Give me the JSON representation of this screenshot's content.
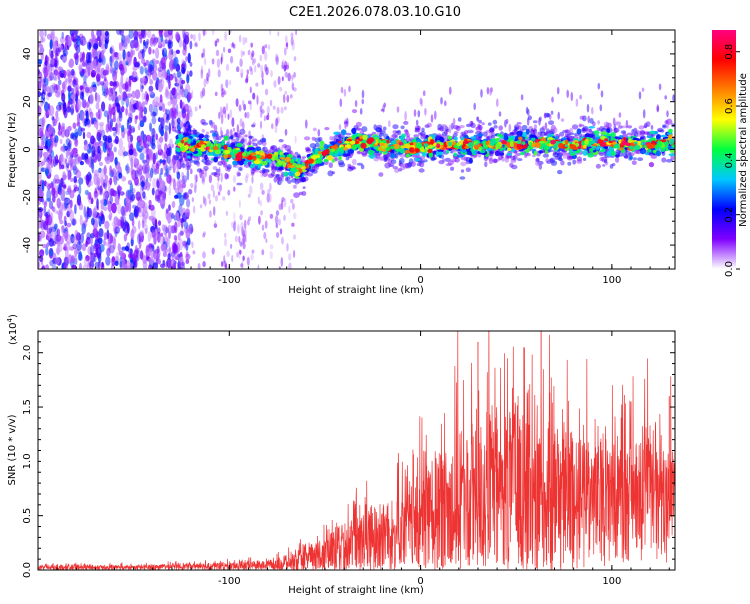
{
  "figure_title": "C2E1.2026.078.03.10.G10",
  "chart_data": [
    {
      "type": "heatmap",
      "title": "C2E1.2026.078.03.10.G10",
      "xlabel": "Height of straight line (km)",
      "ylabel": "Frequency (Hz)",
      "xlim": [
        -200,
        133
      ],
      "ylim": [
        -50,
        50
      ],
      "x_ticks": [
        -100,
        0,
        100
      ],
      "y_ticks": [
        -40,
        -20,
        0,
        20,
        40
      ],
      "x_tick_labels": [
        "-100",
        "0",
        "100"
      ],
      "y_tick_labels": [
        "-40",
        "-20",
        "0",
        "20",
        "40"
      ],
      "colorbar": {
        "label": "Normalized spectral amplitude",
        "range": [
          0.0,
          0.88
        ],
        "ticks": [
          0.0,
          0.2,
          0.4,
          0.6,
          0.8
        ],
        "tick_labels": [
          "0.0",
          "0.2",
          "0.4",
          "0.6",
          "0.8"
        ],
        "colors": [
          "#ffffff",
          "#7f00ff",
          "#0000ff",
          "#00c8ff",
          "#00ff40",
          "#ffff00",
          "#ff8000",
          "#ff0000",
          "#ff0080"
        ]
      },
      "ridge_frequency": {
        "x": [
          -125,
          -110,
          -95,
          -85,
          -75,
          -68,
          -62,
          -55,
          -45,
          -35,
          -25,
          -15,
          0,
          20,
          40,
          60,
          80,
          100,
          115,
          133
        ],
        "y": [
          2,
          1,
          -2,
          -3,
          -4,
          -6,
          -9,
          -3,
          0,
          3,
          3,
          1,
          1,
          2,
          2,
          3,
          2,
          3,
          2,
          3
        ]
      },
      "noise_region_x": [
        -200,
        -120
      ],
      "sparse_region_x": [
        -120,
        -65
      ]
    },
    {
      "type": "line",
      "title": "",
      "xlabel": "Height of straight line (km)",
      "ylabel": "SNR (10 * v/v)",
      "y_scale_label": "(x10",
      "y_scale_exponent": "4",
      "color": "#ee3333",
      "xlim": [
        -200,
        133
      ],
      "ylim": [
        0.0,
        2.2
      ],
      "x_ticks": [
        -100,
        0,
        100
      ],
      "y_ticks": [
        0.0,
        0.5,
        1.0,
        1.5,
        2.0
      ],
      "x_tick_labels": [
        "-100",
        "0",
        "100"
      ],
      "y_tick_labels": [
        "0.0",
        "0.5",
        "1.0",
        "1.5",
        "2.0"
      ],
      "envelope": {
        "x": [
          -200,
          -150,
          -120,
          -100,
          -80,
          -65,
          -55,
          -45,
          -35,
          -25,
          -10,
          0,
          10,
          20,
          35,
          50,
          60,
          70,
          85,
          100,
          115,
          133
        ],
        "baseline": [
          0.02,
          0.02,
          0.03,
          0.03,
          0.04,
          0.06,
          0.1,
          0.15,
          0.2,
          0.25,
          0.3,
          0.4,
          0.5,
          0.55,
          0.6,
          0.65,
          0.6,
          0.6,
          0.6,
          0.6,
          0.65,
          0.55
        ],
        "amplitude": [
          0.04,
          0.04,
          0.05,
          0.06,
          0.08,
          0.15,
          0.25,
          0.4,
          0.55,
          0.6,
          0.7,
          0.9,
          1.0,
          1.2,
          1.3,
          1.4,
          1.3,
          1.2,
          1.1,
          1.0,
          1.05,
          1.0
        ]
      },
      "peaks": [
        {
          "x": 30,
          "y": 2.1
        },
        {
          "x": 54,
          "y": 2.05
        },
        {
          "x": 63,
          "y": 2.2
        },
        {
          "x": 110,
          "y": 1.55
        },
        {
          "x": 130,
          "y": 1.6
        }
      ]
    }
  ]
}
